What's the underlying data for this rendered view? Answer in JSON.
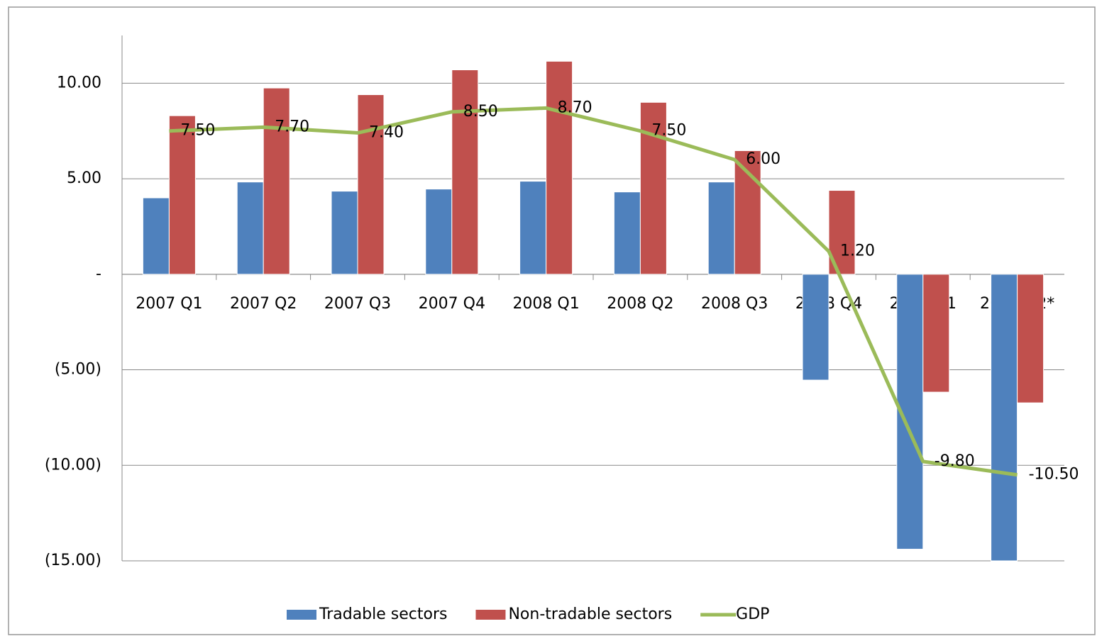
{
  "chart_data": {
    "type": "bar-line",
    "categories": [
      "2007 Q1",
      "2007 Q2",
      "2007 Q3",
      "2007 Q4",
      "2008 Q1",
      "2008 Q2",
      "2008 Q3",
      "2008 Q4",
      "2009 Q1",
      "2009 Q2*"
    ],
    "series": [
      {
        "name": "Tradable sectors",
        "type": "bar",
        "color": "#4f81bd",
        "values": [
          4.0,
          4.83,
          4.35,
          4.46,
          4.87,
          4.31,
          4.83,
          -5.54,
          -14.39,
          -15.0
        ]
      },
      {
        "name": "Non-tradable sectors",
        "type": "bar",
        "color": "#c0504d",
        "values": [
          8.3,
          9.75,
          9.4,
          10.7,
          11.15,
          9.0,
          6.47,
          4.39,
          -6.17,
          -6.73
        ]
      },
      {
        "name": "GDP",
        "type": "line",
        "color": "#9bbb59",
        "values": [
          7.5,
          7.7,
          7.4,
          8.5,
          8.7,
          7.5,
          6.0,
          1.2,
          -9.8,
          -10.5
        ],
        "value_labels": [
          "7.50",
          "7.70",
          "7.40",
          "8.50",
          "8.70",
          "7.50",
          "6.00",
          "1.20",
          "-9.80",
          "-10.50"
        ]
      }
    ],
    "ylim": [
      -15,
      12.5
    ],
    "yticks": [
      {
        "value": 10,
        "label": "10.00"
      },
      {
        "value": 5,
        "label": "5.00"
      },
      {
        "value": 0,
        "label": "-"
      },
      {
        "value": -5,
        "label": "(5.00)"
      },
      {
        "value": -10,
        "label": "(10.00)"
      },
      {
        "value": -15,
        "label": "(15.00)"
      }
    ],
    "grid": true,
    "legend": "bottom"
  }
}
